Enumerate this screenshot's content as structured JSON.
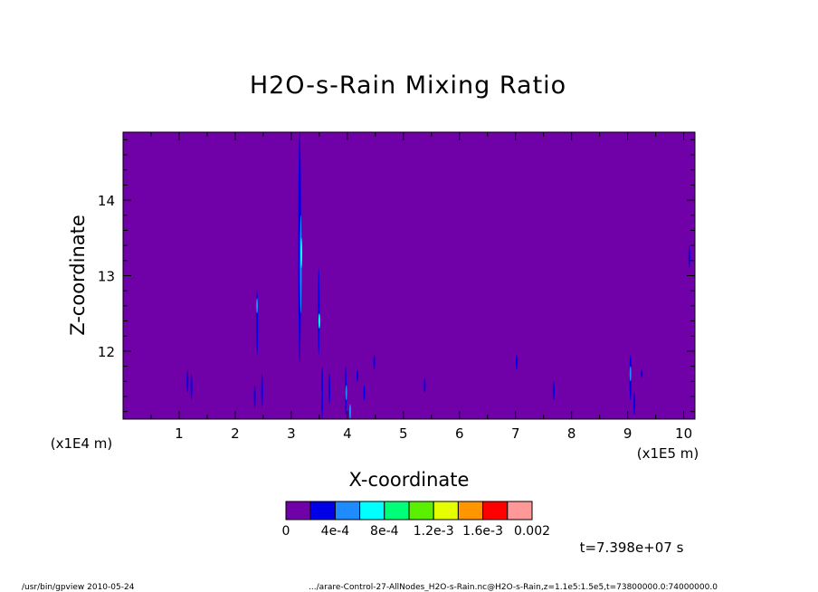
{
  "title": "H2O-s-Rain Mixing Ratio",
  "footer_left": "/usr/bin/gpview   2010-05-24",
  "footer_right": ".../arare-Control-27-AllNodes_H2O-s-Rain.nc@H2O-s-Rain,z=1.1e5:1.5e5,t=73800000.0:74000000.0",
  "time_label": "t=7.398e+07 s",
  "colors": {
    "background": "#7000a8",
    "levels": [
      "#7000a8",
      "#0000e6",
      "#1e8cff",
      "#00ffff",
      "#00ff78",
      "#5af000",
      "#e6ff00",
      "#ff9600",
      "#ff0000",
      "#ff9999"
    ]
  },
  "colorbar": {
    "labels": [
      "0",
      "4e-4",
      "8e-4",
      "1.2e-3",
      "1.6e-3",
      "0.002"
    ]
  },
  "chart_data": {
    "type": "heatmap",
    "title": "H2O-s-Rain Mixing Ratio",
    "xlabel": "X-coordinate",
    "ylabel": "Z-coordinate",
    "x_scale_label": "(x1E5 m)",
    "y_scale_label": "(x1E4 m)",
    "xlim": [
      0,
      10.2
    ],
    "ylim": [
      11.1,
      14.9
    ],
    "xticks": [
      1,
      2,
      3,
      4,
      5,
      6,
      7,
      8,
      9,
      10
    ],
    "yticks": [
      12,
      13,
      14
    ],
    "xtick_labels": [
      "1",
      "2",
      "3",
      "4",
      "5",
      "6",
      "7",
      "8",
      "9",
      "10"
    ],
    "ytick_labels": [
      "12",
      "13",
      "14"
    ],
    "color_levels": [
      0,
      0.0002,
      0.0004,
      0.0006,
      0.0008,
      0.001,
      0.0012,
      0.0014,
      0.0016,
      0.0018,
      0.002
    ],
    "features": [
      {
        "x": 3.15,
        "z0": 11.85,
        "z1": 14.9,
        "w": 0.05,
        "level": 1
      },
      {
        "x": 3.17,
        "z0": 12.5,
        "z1": 13.8,
        "w": 0.025,
        "level": 2
      },
      {
        "x": 3.18,
        "z0": 13.1,
        "z1": 13.5,
        "w": 0.012,
        "level": 3
      },
      {
        "x": 3.49,
        "z0": 11.95,
        "z1": 13.1,
        "w": 0.012,
        "level": 1
      },
      {
        "x": 3.5,
        "z0": 12.3,
        "z1": 12.5,
        "w": 0.006,
        "level": 3
      },
      {
        "x": 2.39,
        "z0": 11.95,
        "z1": 12.8,
        "w": 0.035,
        "level": 1
      },
      {
        "x": 2.39,
        "z0": 12.5,
        "z1": 12.7,
        "w": 0.015,
        "level": 2
      },
      {
        "x": 1.15,
        "z0": 11.45,
        "z1": 11.75,
        "w": 0.02,
        "level": 1
      },
      {
        "x": 1.22,
        "z0": 11.35,
        "z1": 11.7,
        "w": 0.015,
        "level": 1
      },
      {
        "x": 2.35,
        "z0": 11.25,
        "z1": 11.55,
        "w": 0.015,
        "level": 1
      },
      {
        "x": 2.48,
        "z0": 11.25,
        "z1": 11.7,
        "w": 0.02,
        "level": 1
      },
      {
        "x": 3.55,
        "z0": 11.1,
        "z1": 11.8,
        "w": 0.01,
        "level": 1
      },
      {
        "x": 3.68,
        "z0": 11.3,
        "z1": 11.7,
        "w": 0.012,
        "level": 1
      },
      {
        "x": 3.97,
        "z0": 11.15,
        "z1": 11.8,
        "w": 0.03,
        "level": 1
      },
      {
        "x": 3.98,
        "z0": 11.35,
        "z1": 11.55,
        "w": 0.012,
        "level": 2
      },
      {
        "x": 4.05,
        "z0": 11.1,
        "z1": 11.3,
        "w": 0.02,
        "level": 2
      },
      {
        "x": 4.18,
        "z0": 11.6,
        "z1": 11.75,
        "w": 0.012,
        "level": 1
      },
      {
        "x": 4.3,
        "z0": 11.35,
        "z1": 11.55,
        "w": 0.012,
        "level": 1
      },
      {
        "x": 4.48,
        "z0": 11.75,
        "z1": 11.95,
        "w": 0.01,
        "level": 1
      },
      {
        "x": 5.38,
        "z0": 11.45,
        "z1": 11.65,
        "w": 0.01,
        "level": 1
      },
      {
        "x": 7.02,
        "z0": 11.75,
        "z1": 11.95,
        "w": 0.01,
        "level": 1
      },
      {
        "x": 7.68,
        "z0": 11.35,
        "z1": 11.6,
        "w": 0.01,
        "level": 1
      },
      {
        "x": 9.05,
        "z0": 11.35,
        "z1": 11.95,
        "w": 0.035,
        "level": 1
      },
      {
        "x": 9.05,
        "z0": 11.6,
        "z1": 11.8,
        "w": 0.015,
        "level": 2
      },
      {
        "x": 9.12,
        "z0": 11.15,
        "z1": 11.45,
        "w": 0.015,
        "level": 1
      },
      {
        "x": 9.25,
        "z0": 11.65,
        "z1": 11.75,
        "w": 0.008,
        "level": 1
      },
      {
        "x": 10.1,
        "z0": 13.1,
        "z1": 13.4,
        "w": 0.01,
        "level": 1
      }
    ]
  }
}
